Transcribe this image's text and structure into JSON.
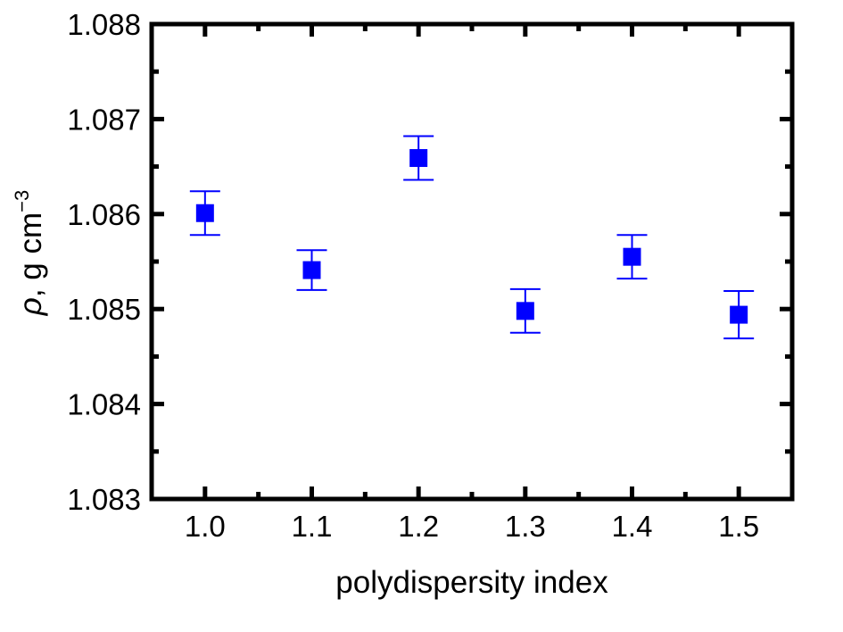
{
  "chart_data": {
    "type": "scatter",
    "title": "",
    "xlabel": "polydispersity index",
    "ylabel": {
      "symbol": "ρ",
      "rest": ", g cm",
      "superscript": "−3"
    },
    "xlim": [
      0.95,
      1.55
    ],
    "ylim": [
      1.083,
      1.088
    ],
    "x_ticks": [
      "1.0",
      "1.1",
      "1.2",
      "1.3",
      "1.4",
      "1.5"
    ],
    "y_ticks": [
      "1.083",
      "1.084",
      "1.085",
      "1.086",
      "1.087",
      "1.088"
    ],
    "grid": false,
    "series": [
      {
        "marker": "square",
        "color": "#0000ff",
        "x": [
          1.0,
          1.1,
          1.2,
          1.3,
          1.4,
          1.5
        ],
        "y": [
          1.08601,
          1.08541,
          1.08659,
          1.08498,
          1.08555,
          1.08494
        ],
        "error": [
          0.00023,
          0.00021,
          0.00023,
          0.00023,
          0.00023,
          0.00025
        ]
      }
    ]
  }
}
